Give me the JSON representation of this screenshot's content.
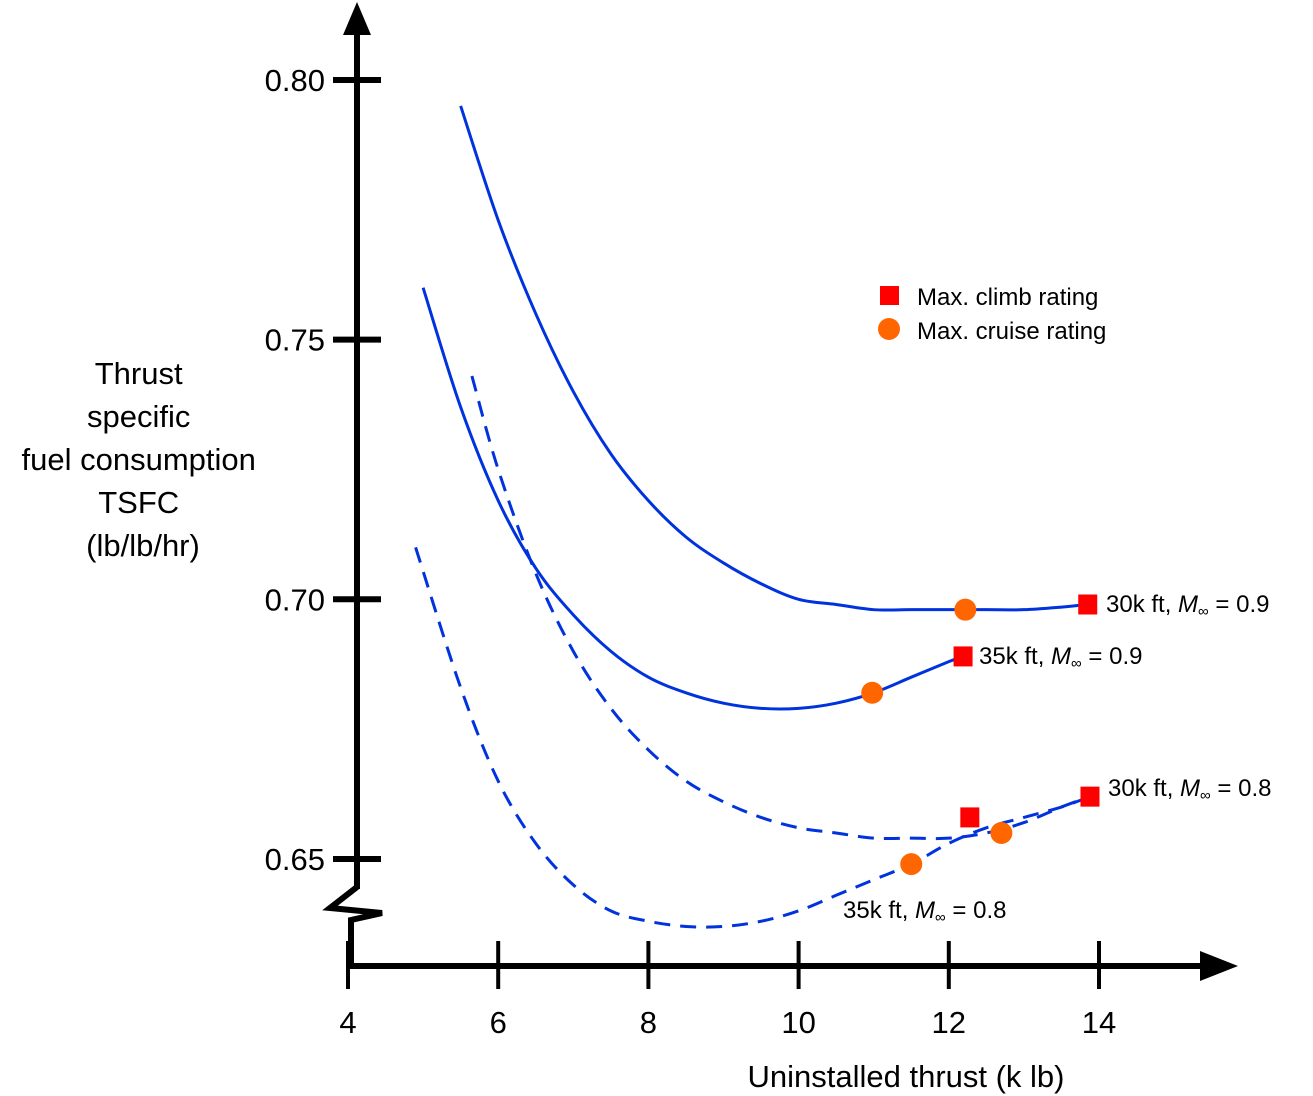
{
  "chart_data": {
    "type": "line",
    "title": "",
    "xlabel": "Uninstalled thrust (k lb)",
    "ylabel_lines": [
      "Thrust",
      "specific",
      "fuel consumption",
      "TSFC",
      "(lb/lb/hr)"
    ],
    "xlim": [
      4,
      15.5
    ],
    "ylim": [
      0.63,
      0.81
    ],
    "x_ticks": [
      4,
      6,
      8,
      10,
      12,
      14
    ],
    "x_tick_labels": [
      "4",
      "6",
      "8",
      "10",
      "12",
      "14"
    ],
    "y_ticks": [
      0.65,
      0.7,
      0.75,
      0.8
    ],
    "y_tick_labels": [
      "0.65",
      "0.70",
      "0.75",
      "0.80"
    ],
    "y_axis_break": true,
    "grid": false,
    "legend": {
      "placement": "upper-right",
      "entries": [
        {
          "label": "Max. climb rating",
          "marker": "square",
          "color": "#ff0000"
        },
        {
          "label": "Max. cruise rating",
          "marker": "circle",
          "color": "#ff6600"
        }
      ]
    },
    "series": [
      {
        "name": "30k ft, M∞ = 0.9",
        "label_prefix": "30k ft, ",
        "label_mach": "M",
        "label_suffix": " = 0.9",
        "style": "solid",
        "color": "#0033dd",
        "x": [
          5.5,
          6.0,
          6.5,
          7.0,
          7.5,
          8.0,
          8.5,
          9.0,
          9.5,
          10.0,
          10.5,
          11.0,
          11.5,
          12.0,
          12.5,
          13.0,
          13.5,
          13.85
        ],
        "y": [
          0.795,
          0.773,
          0.755,
          0.74,
          0.728,
          0.719,
          0.712,
          0.707,
          0.703,
          0.7,
          0.699,
          0.698,
          0.698,
          0.698,
          0.698,
          0.698,
          0.6985,
          0.699
        ],
        "climb_point": {
          "x": 13.85,
          "y": 0.699
        },
        "cruise_point": {
          "x": 12.22,
          "y": 0.698
        }
      },
      {
        "name": "35k ft, M∞ = 0.9",
        "label_prefix": "35k ft, ",
        "label_mach": "M",
        "label_suffix": " = 0.9",
        "style": "solid",
        "color": "#0033dd",
        "x": [
          5.0,
          5.5,
          6.0,
          6.5,
          7.0,
          7.5,
          8.0,
          8.5,
          9.0,
          9.5,
          10.0,
          10.5,
          11.0,
          11.5,
          12.0,
          12.19
        ],
        "y": [
          0.76,
          0.737,
          0.719,
          0.706,
          0.697,
          0.69,
          0.685,
          0.682,
          0.68,
          0.679,
          0.679,
          0.68,
          0.682,
          0.685,
          0.688,
          0.689
        ],
        "climb_point": {
          "x": 12.19,
          "y": 0.689
        },
        "cruise_point": {
          "x": 10.98,
          "y": 0.682
        }
      },
      {
        "name": "30k ft, M∞ = 0.8",
        "label_prefix": "30k ft, ",
        "label_mach": "M",
        "label_suffix": " = 0.8",
        "style": "dashed",
        "color": "#0033dd",
        "x": [
          5.65,
          6.0,
          6.5,
          7.0,
          7.5,
          8.0,
          8.5,
          9.0,
          9.5,
          10.0,
          10.5,
          11.0,
          11.5,
          12.0,
          12.5,
          13.0,
          13.5,
          13.88
        ],
        "y": [
          0.743,
          0.725,
          0.705,
          0.69,
          0.679,
          0.671,
          0.665,
          0.661,
          0.658,
          0.656,
          0.655,
          0.654,
          0.654,
          0.654,
          0.655,
          0.657,
          0.66,
          0.662
        ],
        "climb_point": {
          "x": 12.28,
          "y": 0.658
        },
        "cruise_point": {
          "x": 12.7,
          "y": 0.655
        }
      },
      {
        "name": "35k ft, M∞ = 0.8",
        "label_prefix": "35k ft, ",
        "label_mach": "M",
        "label_suffix": " = 0.8",
        "style": "dashed",
        "color": "#0033dd",
        "x": [
          4.9,
          5.5,
          6.0,
          6.5,
          7.0,
          7.5,
          8.0,
          8.5,
          9.0,
          9.5,
          10.0,
          10.5,
          11.0,
          11.5,
          12.0,
          12.5,
          13.0,
          13.5,
          13.88
        ],
        "y": [
          0.71,
          0.683,
          0.665,
          0.653,
          0.645,
          0.64,
          0.638,
          0.637,
          0.637,
          0.638,
          0.64,
          0.643,
          0.646,
          0.649,
          0.653,
          0.656,
          0.658,
          0.66,
          0.662
        ],
        "climb_point": {
          "x": 13.88,
          "y": 0.662
        },
        "cruise_point": {
          "x": 11.5,
          "y": 0.649
        }
      }
    ],
    "marker_colors": {
      "climb": "#ff0000",
      "cruise": "#ff6600"
    }
  }
}
